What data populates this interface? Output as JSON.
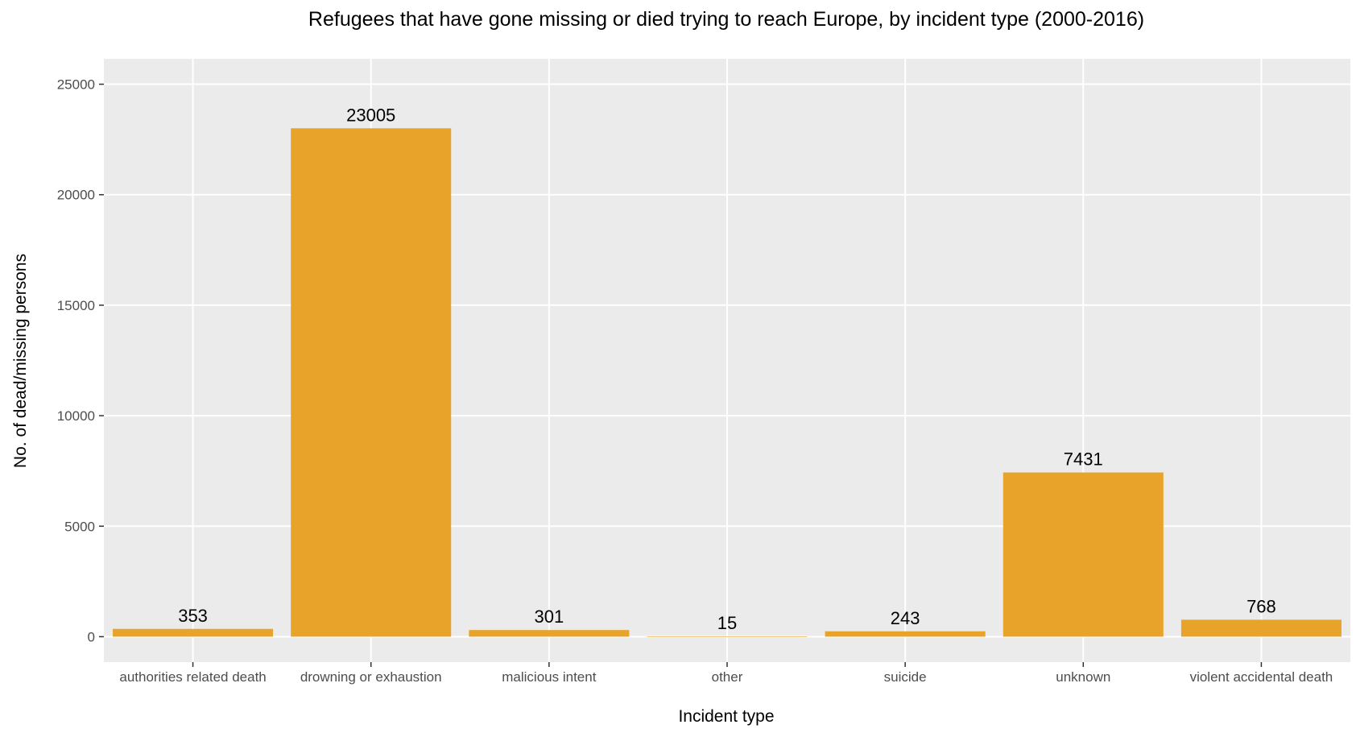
{
  "chart_data": {
    "type": "bar",
    "title": "Refugees that have gone missing or died trying to reach Europe, by incident type (2000-2016)",
    "xlabel": "Incident type",
    "ylabel": "No. of dead/missing persons",
    "categories": [
      "authorities related death",
      "drowning or exhaustion",
      "malicious intent",
      "other",
      "suicide",
      "unknown",
      "violent accidental death"
    ],
    "values": [
      353,
      23005,
      301,
      15,
      243,
      7431,
      768
    ],
    "data_labels": [
      "353",
      "23005",
      "301",
      "15",
      "243",
      "7431",
      "768"
    ],
    "ylim": [
      -1150,
      26150
    ],
    "yticks": [
      0,
      5000,
      10000,
      15000,
      20000,
      25000
    ],
    "ytick_labels": [
      "0",
      "5000",
      "10000",
      "15000",
      "20000",
      "25000"
    ],
    "grid": true,
    "legend": "none",
    "colors": {
      "bar": "#E8A42A",
      "panel": "#EBEBEB",
      "grid_major": "#FFFFFF",
      "text": "#000000",
      "tick_text": "#4D4D4D",
      "tick_mark": "#333333"
    }
  }
}
